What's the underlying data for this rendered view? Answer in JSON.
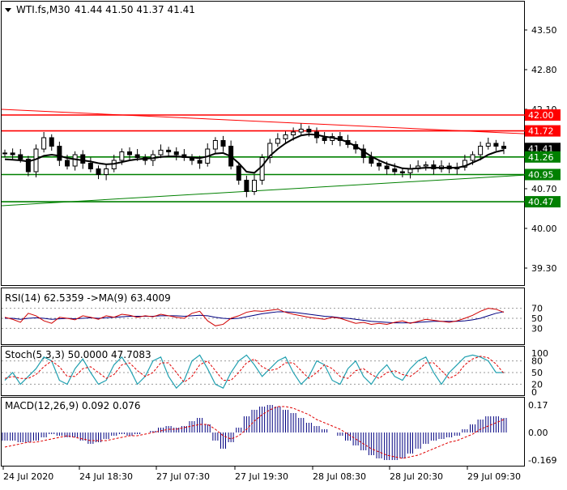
{
  "header": {
    "symbol": "WTI.fs,M30",
    "ohlc": "41.44 41.50 41.37 41.41"
  },
  "colors": {
    "background": "#ffffff",
    "frame": "#000000",
    "candle": "#000000",
    "moving_average": "#000000",
    "resistance": "#ff0000",
    "support": "#008000",
    "rsi_line": "#d00000",
    "rsi_ma": "#000080",
    "stoch_main": "#20a0b0",
    "stoch_signal": "#e00000",
    "macd_hist": "#000080",
    "macd_signal": "#e00000"
  },
  "chart_data": [
    {
      "type": "candlestick",
      "title": "WTI.fs,M30",
      "ylim": [
        39.0,
        44.0
      ],
      "y_ticks": [
        "43.50",
        "42.80",
        "42.10",
        "41.40",
        "40.70",
        "40.00",
        "39.30"
      ],
      "x_ticks": [
        "24 Jul 2020",
        "24 Jul 18:30",
        "27 Jul 07:30",
        "27 Jul 19:30",
        "28 Jul 08:30",
        "28 Jul 20:30",
        "29 Jul 09:30"
      ],
      "price_path": [
        41.33,
        41.3,
        41.22,
        41.0,
        41.4,
        41.6,
        41.45,
        41.2,
        41.1,
        41.3,
        41.15,
        41.05,
        40.95,
        41.05,
        41.2,
        41.35,
        41.3,
        41.25,
        41.2,
        41.3,
        41.38,
        41.35,
        41.3,
        41.25,
        41.2,
        41.15,
        41.4,
        41.55,
        41.45,
        41.1,
        40.85,
        40.65,
        40.85,
        41.25,
        41.5,
        41.58,
        41.65,
        41.7,
        41.75,
        41.7,
        41.6,
        41.55,
        41.62,
        41.55,
        41.48,
        41.4,
        41.25,
        41.15,
        41.1,
        41.05,
        41.0,
        40.98,
        41.05,
        41.1,
        41.12,
        41.05,
        41.1,
        41.05,
        41.08,
        41.2,
        41.3,
        41.45,
        41.5,
        41.45,
        41.41
      ],
      "moving_average": [
        41.22,
        41.21,
        41.2,
        41.18,
        41.22,
        41.28,
        41.3,
        41.28,
        41.24,
        41.22,
        41.2,
        41.18,
        41.15,
        41.13,
        41.14,
        41.17,
        41.2,
        41.22,
        41.23,
        41.24,
        41.26,
        41.27,
        41.27,
        41.26,
        41.25,
        41.24,
        41.27,
        41.32,
        41.33,
        41.27,
        41.15,
        41.0,
        40.98,
        41.1,
        41.28,
        41.4,
        41.5,
        41.58,
        41.64,
        41.66,
        41.65,
        41.62,
        41.6,
        41.57,
        41.52,
        41.45,
        41.36,
        41.27,
        41.2,
        41.14,
        41.1,
        41.06,
        41.05,
        41.06,
        41.07,
        41.07,
        41.07,
        41.07,
        41.07,
        41.1,
        41.16,
        41.22,
        41.3,
        41.35,
        41.38
      ],
      "levels": [
        {
          "value": "42.00",
          "color": "#ff0000"
        },
        {
          "value": "41.72",
          "color": "#ff0000"
        },
        {
          "value": "41.41",
          "color": "#000000"
        },
        {
          "value": "41.26",
          "color": "#008000"
        },
        {
          "value": "40.95",
          "color": "#008000"
        },
        {
          "value": "40.47",
          "color": "#008000"
        }
      ],
      "trendlines": [
        {
          "color": "#ff0000",
          "from": 42.1,
          "to": 41.67
        },
        {
          "color": "#008000",
          "from": 40.4,
          "to": 40.94
        }
      ]
    },
    {
      "type": "line",
      "title": "RSI(14) 62.5359 ->MA(9) 63.4009",
      "ylim": [
        0,
        100
      ],
      "y_ticks": [
        "70",
        "50",
        "30"
      ],
      "levels": [
        70,
        50,
        30
      ],
      "series": [
        {
          "values": [
            52,
            48,
            42,
            60,
            55,
            45,
            40,
            52,
            50,
            47,
            55,
            52,
            48,
            55,
            52,
            58,
            56,
            52,
            55,
            53,
            58,
            55,
            52,
            50,
            60,
            64,
            45,
            35,
            38,
            50,
            55,
            62,
            65,
            64,
            66,
            68,
            62,
            58,
            55,
            52,
            50,
            48,
            52,
            50,
            45,
            40,
            42,
            38,
            40,
            38,
            42,
            45,
            40,
            44,
            48,
            46,
            44,
            42,
            45,
            50,
            56,
            64,
            70,
            68,
            62
          ]
        },
        {
          "values": [
            50,
            50,
            48,
            50,
            51,
            50,
            48,
            49,
            50,
            49,
            50,
            51,
            50,
            51,
            52,
            53,
            54,
            54,
            54,
            54,
            55,
            55,
            55,
            54,
            55,
            56,
            55,
            52,
            50,
            49,
            50,
            53,
            56,
            59,
            61,
            63,
            63,
            62,
            60,
            58,
            56,
            54,
            53,
            51,
            50,
            48,
            46,
            44,
            43,
            42,
            41,
            41,
            41,
            42,
            43,
            44,
            44,
            44,
            44,
            45,
            47,
            50,
            55,
            60,
            63
          ]
        }
      ]
    },
    {
      "type": "line",
      "title": "Stoch(5,3,3) 50.0000 47.7083",
      "ylim": [
        0,
        100
      ],
      "y_ticks": [
        "100",
        "80",
        "50",
        "20",
        "0"
      ],
      "levels": [
        80,
        50,
        20
      ],
      "series": [
        {
          "values": [
            30,
            50,
            20,
            40,
            60,
            90,
            80,
            30,
            20,
            60,
            85,
            50,
            20,
            30,
            70,
            90,
            60,
            20,
            40,
            80,
            90,
            40,
            10,
            30,
            80,
            95,
            60,
            20,
            10,
            50,
            80,
            95,
            70,
            40,
            60,
            80,
            90,
            50,
            20,
            40,
            80,
            70,
            30,
            20,
            60,
            80,
            40,
            20,
            50,
            70,
            40,
            30,
            60,
            80,
            90,
            50,
            20,
            50,
            70,
            90,
            95,
            90,
            80,
            50,
            50
          ]
        },
        {
          "values": [
            35,
            40,
            35,
            35,
            45,
            65,
            80,
            65,
            40,
            40,
            60,
            65,
            50,
            35,
            45,
            70,
            75,
            55,
            40,
            50,
            75,
            75,
            50,
            25,
            40,
            70,
            80,
            55,
            30,
            30,
            50,
            75,
            85,
            65,
            55,
            60,
            75,
            75,
            55,
            35,
            50,
            70,
            60,
            40,
            35,
            55,
            60,
            45,
            35,
            50,
            55,
            45,
            40,
            55,
            75,
            75,
            55,
            35,
            45,
            70,
            85,
            92,
            88,
            72,
            48
          ]
        }
      ]
    },
    {
      "type": "bar",
      "title": "MACD(12,26,9) 0.092 0.076",
      "ylim": [
        -0.19,
        0.19
      ],
      "y_ticks": [
        "0.17",
        "0.00",
        "-0.169"
      ],
      "histogram": [
        -0.05,
        -0.05,
        -0.06,
        -0.06,
        -0.05,
        -0.03,
        -0.01,
        -0.02,
        -0.03,
        -0.03,
        -0.05,
        -0.07,
        -0.06,
        -0.04,
        -0.02,
        -0.01,
        -0.02,
        -0.01,
        0.0,
        0.01,
        0.03,
        0.04,
        0.03,
        0.04,
        0.07,
        0.09,
        0.05,
        -0.05,
        -0.1,
        -0.06,
        0.03,
        0.1,
        0.14,
        0.16,
        0.17,
        0.16,
        0.14,
        0.12,
        0.09,
        0.06,
        0.04,
        0.02,
        0.0,
        -0.02,
        -0.05,
        -0.08,
        -0.11,
        -0.14,
        -0.16,
        -0.17,
        -0.17,
        -0.16,
        -0.13,
        -0.1,
        -0.07,
        -0.05,
        -0.04,
        -0.03,
        -0.02,
        0.02,
        0.05,
        0.08,
        0.1,
        0.1,
        0.09
      ],
      "signal": [
        -0.09,
        -0.08,
        -0.07,
        -0.06,
        -0.06,
        -0.05,
        -0.04,
        -0.03,
        -0.02,
        -0.03,
        -0.04,
        -0.05,
        -0.05,
        -0.05,
        -0.04,
        -0.03,
        -0.02,
        -0.02,
        -0.01,
        0.0,
        0.01,
        0.02,
        0.02,
        0.03,
        0.04,
        0.05,
        0.05,
        0.02,
        -0.02,
        -0.04,
        -0.02,
        0.02,
        0.07,
        0.11,
        0.14,
        0.16,
        0.16,
        0.15,
        0.13,
        0.11,
        0.08,
        0.06,
        0.04,
        0.02,
        -0.01,
        -0.04,
        -0.07,
        -0.1,
        -0.12,
        -0.14,
        -0.15,
        -0.16,
        -0.15,
        -0.14,
        -0.12,
        -0.1,
        -0.08,
        -0.06,
        -0.05,
        -0.03,
        -0.01,
        0.02,
        0.04,
        0.06,
        0.08
      ]
    }
  ]
}
